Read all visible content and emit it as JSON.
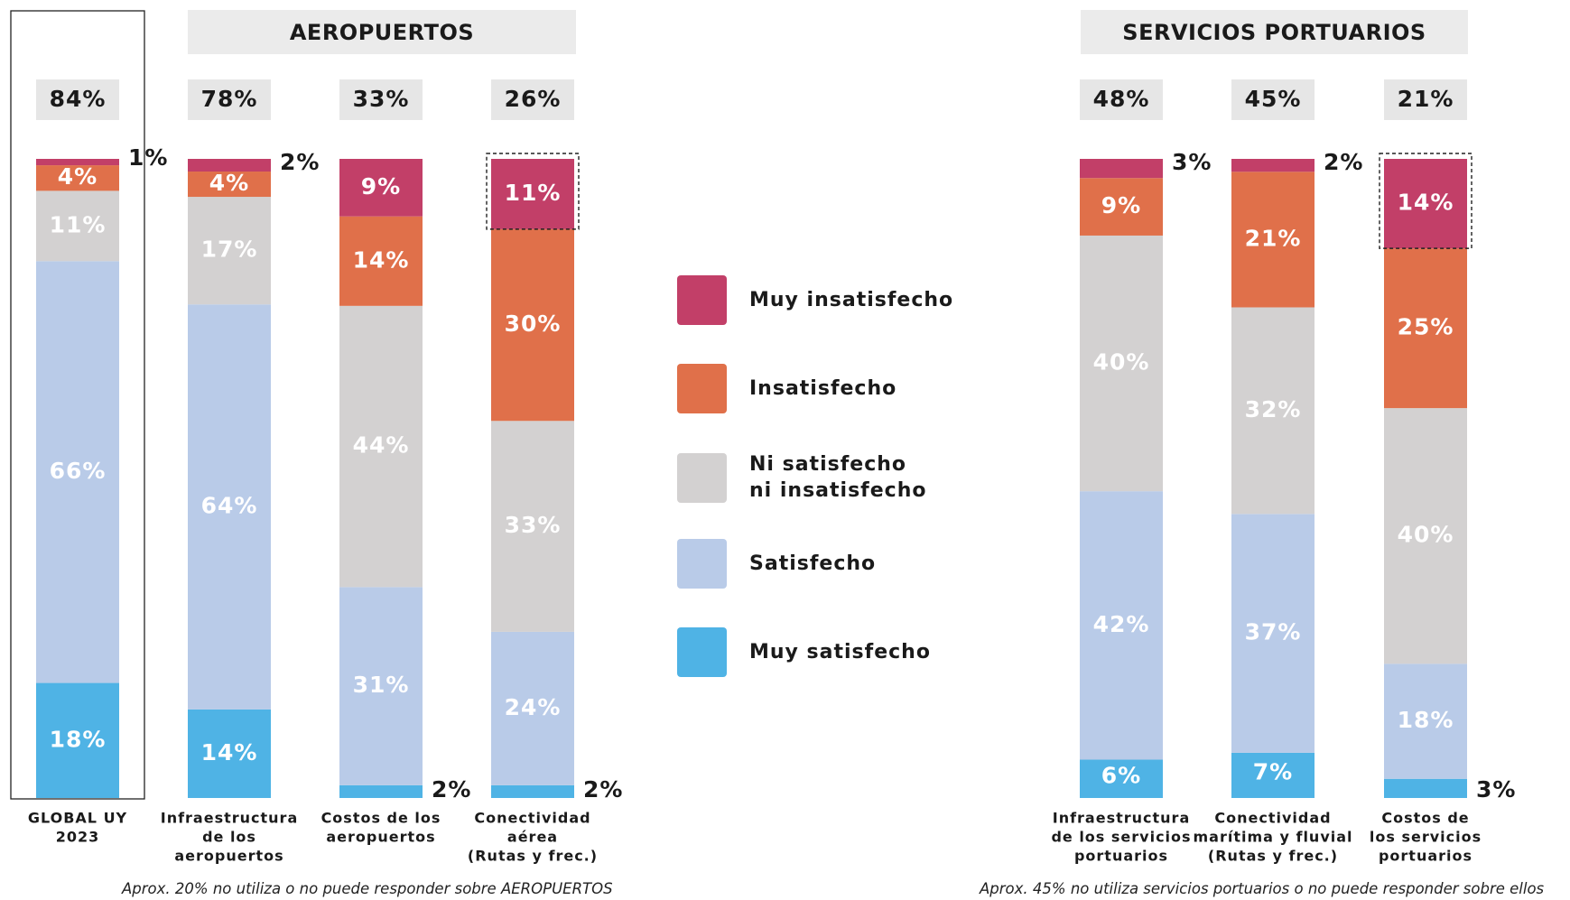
{
  "chart_data": {
    "type": "bar",
    "stacked": true,
    "stack_order": [
      "Muy satisfecho",
      "Satisfecho",
      "Ni satisfecho ni insatisfecho",
      "Insatisfecho",
      "Muy insatisfecho"
    ],
    "legend": [
      {
        "label": "Muy insatisfecho",
        "color": "#c23f68"
      },
      {
        "label": "Insatisfecho",
        "color": "#e0704a"
      },
      {
        "label": "Ni satisfecho\nni insatisfecho",
        "color": "#d3d1d1"
      },
      {
        "label": "Satisfecho",
        "color": "#b9cbe8"
      },
      {
        "label": "Muy satisfecho",
        "color": "#4fb3e5"
      }
    ],
    "sections": [
      {
        "title": "",
        "bars": [
          0
        ]
      },
      {
        "title": "AEROPUERTOS",
        "bars": [
          1,
          2,
          3
        ]
      },
      {
        "title": "SERVICIOS PORTUARIOS",
        "bars": [
          4,
          5,
          6
        ]
      }
    ],
    "bars": [
      {
        "category": "GLOBAL UY\n2023",
        "header": "84%",
        "highlight": "box",
        "values": {
          "Muy satisfecho": 18,
          "Satisfecho": 66,
          "Ni satisfecho ni insatisfecho": 11,
          "Insatisfecho": 4,
          "Muy insatisfecho": 1
        },
        "labels": {
          "Muy satisfecho": "18%",
          "Satisfecho": "66%",
          "Ni satisfecho ni insatisfecho": "11%",
          "Insatisfecho": "4%",
          "Muy insatisfecho": "1%"
        }
      },
      {
        "category": "Infraestructura\nde los\naeropuertos",
        "header": "78%",
        "highlight": "",
        "values": {
          "Muy satisfecho": 14,
          "Satisfecho": 64,
          "Ni satisfecho ni insatisfecho": 17,
          "Insatisfecho": 4,
          "Muy insatisfecho": 2
        },
        "labels": {
          "Muy satisfecho": "14%",
          "Satisfecho": "64%",
          "Ni satisfecho ni insatisfecho": "17%",
          "Insatisfecho": "4%",
          "Muy insatisfecho": "2%"
        }
      },
      {
        "category": "Costos de los\naeropuertos",
        "header": "33%",
        "highlight": "",
        "values": {
          "Muy satisfecho": 2,
          "Satisfecho": 31,
          "Ni satisfecho ni insatisfecho": 44,
          "Insatisfecho": 14,
          "Muy insatisfecho": 9
        },
        "labels": {
          "Muy satisfecho": "2%",
          "Satisfecho": "31%",
          "Ni satisfecho ni insatisfecho": "44%",
          "Insatisfecho": "14%",
          "Muy insatisfecho": "9%"
        }
      },
      {
        "category": "Conectividad\naérea\n(Rutas y frec.)",
        "header": "26%",
        "highlight": "dashed",
        "values": {
          "Muy satisfecho": 2,
          "Satisfecho": 24,
          "Ni satisfecho ni insatisfecho": 33,
          "Insatisfecho": 30,
          "Muy insatisfecho": 11
        },
        "labels": {
          "Muy satisfecho": "2%",
          "Satisfecho": "24%",
          "Ni satisfecho ni insatisfecho": "33%",
          "Insatisfecho": "30%",
          "Muy insatisfecho": "11%"
        }
      },
      {
        "category": "Infraestructura\nde los servicios\nportuarios",
        "header": "48%",
        "highlight": "",
        "values": {
          "Muy satisfecho": 6,
          "Satisfecho": 42,
          "Ni satisfecho ni insatisfecho": 40,
          "Insatisfecho": 9,
          "Muy insatisfecho": 3
        },
        "labels": {
          "Muy satisfecho": "6%",
          "Satisfecho": "42%",
          "Ni satisfecho ni insatisfecho": "40%",
          "Insatisfecho": "9%",
          "Muy insatisfecho": "3%"
        }
      },
      {
        "category": "Conectividad\nmarítima y fluvial\n(Rutas y frec.)",
        "header": "45%",
        "highlight": "",
        "values": {
          "Muy satisfecho": 7,
          "Satisfecho": 37,
          "Ni satisfecho ni insatisfecho": 32,
          "Insatisfecho": 21,
          "Muy insatisfecho": 2
        },
        "labels": {
          "Muy satisfecho": "7%",
          "Satisfecho": "37%",
          "Ni satisfecho ni insatisfecho": "32%",
          "Insatisfecho": "21%",
          "Muy insatisfecho": "2%"
        }
      },
      {
        "category": "Costos de\nlos servicios\nportuarios",
        "header": "21%",
        "highlight": "dashed",
        "values": {
          "Muy satisfecho": 3,
          "Satisfecho": 18,
          "Ni satisfecho ni insatisfecho": 40,
          "Insatisfecho": 25,
          "Muy insatisfecho": 14
        },
        "labels": {
          "Muy satisfecho": "3%",
          "Satisfecho": "18%",
          "Ni satisfecho ni insatisfecho": "40%",
          "Insatisfecho": "25%",
          "Muy insatisfecho": "14%"
        }
      }
    ],
    "footnotes": [
      "Aprox. 20% no utiliza o no puede responder sobre AEROPUERTOS",
      "Aprox. 45% no utiliza servicios portuarios o no puede responder sobre ellos"
    ]
  }
}
